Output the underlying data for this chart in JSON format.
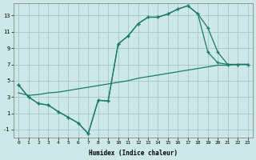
{
  "xlabel": "Humidex (Indice chaleur)",
  "background_color": "#cce8e8",
  "grid_color": "#aacccc",
  "line_color": "#1a7a6a",
  "xlim": [
    -0.5,
    23.5
  ],
  "ylim": [
    -2.0,
    14.5
  ],
  "xticks": [
    0,
    1,
    2,
    3,
    4,
    5,
    6,
    7,
    8,
    9,
    10,
    11,
    12,
    13,
    14,
    15,
    16,
    17,
    18,
    19,
    20,
    21,
    22,
    23
  ],
  "yticks": [
    -1,
    1,
    3,
    5,
    7,
    9,
    11,
    13
  ],
  "line1_x": [
    0,
    1,
    2,
    3,
    4,
    5,
    6,
    7,
    8,
    9,
    10,
    11,
    12,
    13,
    14,
    15,
    16,
    17,
    18,
    19,
    20,
    21,
    22,
    23
  ],
  "line1_y": [
    4.5,
    3.0,
    2.2,
    2.0,
    1.2,
    0.5,
    -0.2,
    -1.5,
    2.6,
    2.5,
    9.5,
    10.5,
    12.0,
    12.8,
    12.8,
    13.2,
    13.8,
    14.2,
    13.2,
    8.5,
    7.2,
    7.0,
    7.0,
    7.0
  ],
  "line2_x": [
    0,
    1,
    2,
    3,
    4,
    5,
    6,
    7,
    8,
    9,
    10,
    11,
    12,
    13,
    14,
    15,
    16,
    17,
    18,
    19,
    20,
    21,
    22,
    23
  ],
  "line2_y": [
    4.5,
    3.0,
    2.2,
    2.0,
    1.2,
    0.5,
    -0.2,
    -1.5,
    2.6,
    2.5,
    9.5,
    10.5,
    12.0,
    12.8,
    12.8,
    13.2,
    13.8,
    14.2,
    13.2,
    11.5,
    8.5,
    7.0,
    7.0,
    7.0
  ],
  "line3_x": [
    0,
    1,
    2,
    3,
    4,
    5,
    6,
    7,
    8,
    9,
    10,
    11,
    12,
    13,
    14,
    15,
    16,
    17,
    18,
    19,
    20,
    21,
    22,
    23
  ],
  "line3_y": [
    3.5,
    3.2,
    3.3,
    3.5,
    3.6,
    3.8,
    4.0,
    4.2,
    4.4,
    4.6,
    4.8,
    5.0,
    5.3,
    5.5,
    5.7,
    5.9,
    6.1,
    6.3,
    6.5,
    6.7,
    6.9,
    6.9,
    7.0,
    7.0
  ]
}
